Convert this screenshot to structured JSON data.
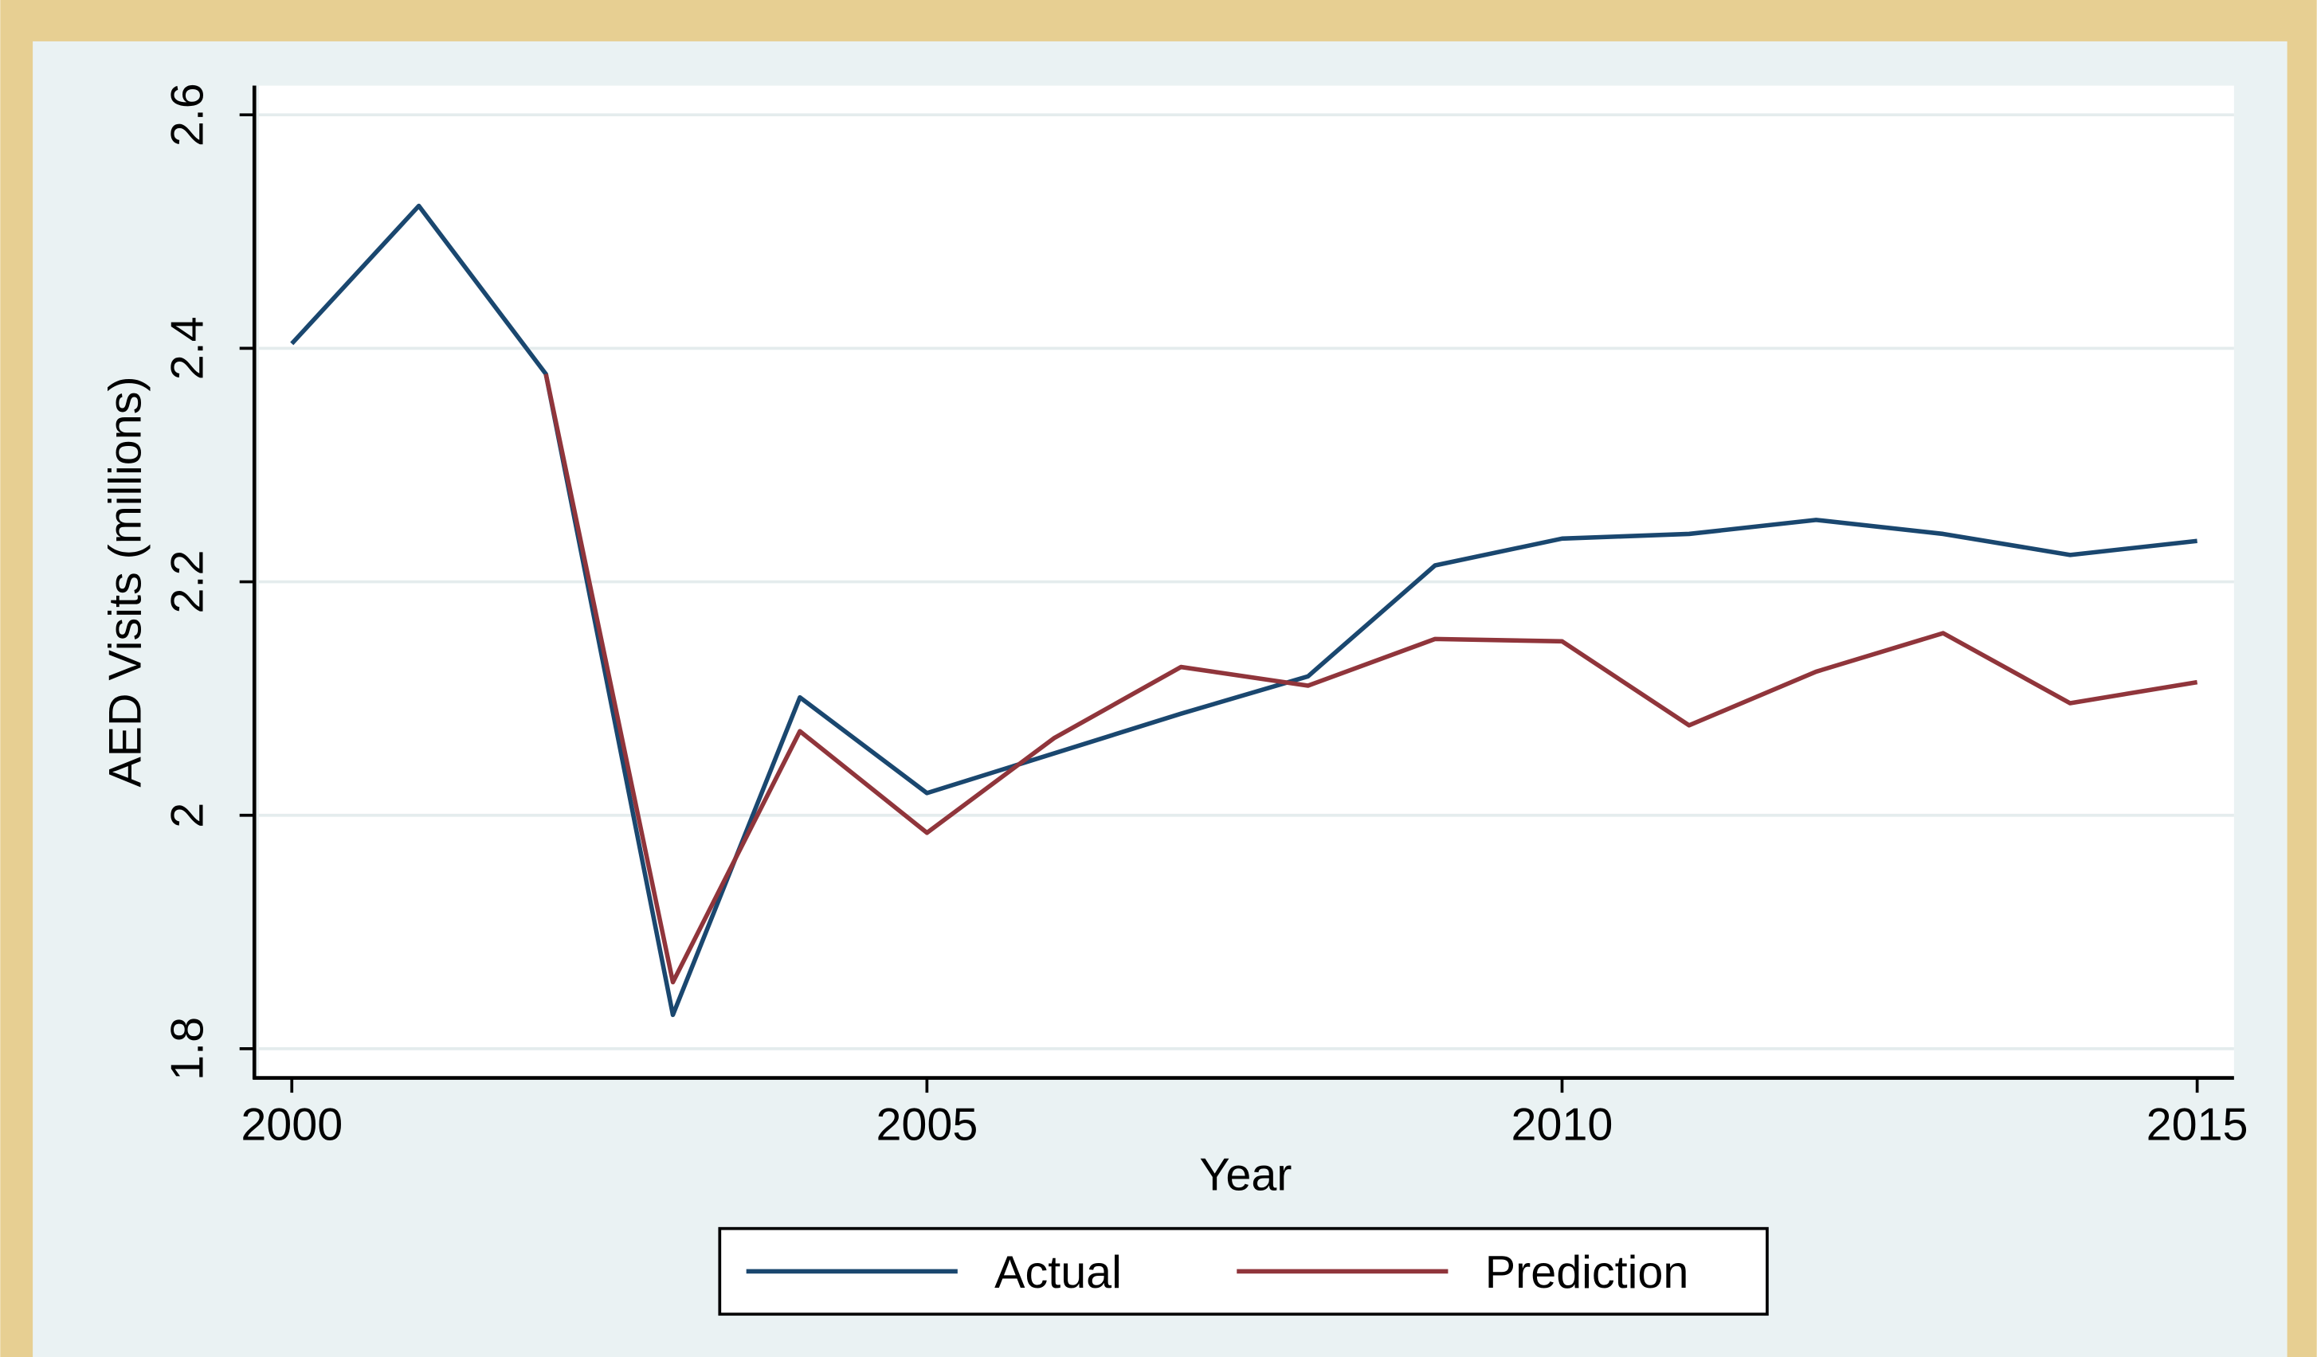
{
  "chart_data": {
    "type": "line",
    "xlabel": "Year",
    "ylabel": "AED Visits (millions)",
    "x": [
      2000,
      2001,
      2002,
      2003,
      2004,
      2005,
      2006,
      2007,
      2008,
      2009,
      2010,
      2011,
      2012,
      2013,
      2014,
      2015
    ],
    "series": [
      {
        "name": "Actual",
        "color": "#1a476f",
        "values": [
          2.404,
          2.522,
          2.378,
          1.829,
          2.101,
          2.019,
          2.053,
          2.087,
          2.119,
          2.214,
          2.237,
          2.241,
          2.253,
          2.241,
          2.223,
          2.235
        ]
      },
      {
        "name": "Prediction",
        "color": "#90353b",
        "values": [
          null,
          null,
          2.378,
          1.857,
          2.072,
          1.985,
          2.066,
          2.127,
          2.111,
          2.151,
          2.149,
          2.077,
          2.123,
          2.156,
          2.096,
          2.114
        ]
      }
    ],
    "xlim": [
      1999.74,
      2015.29
    ],
    "xticks": [
      2000,
      2005,
      2010,
      2015
    ],
    "ylim": [
      1.775,
      2.625
    ],
    "yticks": [
      1.8,
      2,
      2.2,
      2.4,
      2.6
    ],
    "grid": true,
    "legend": "bottom"
  }
}
